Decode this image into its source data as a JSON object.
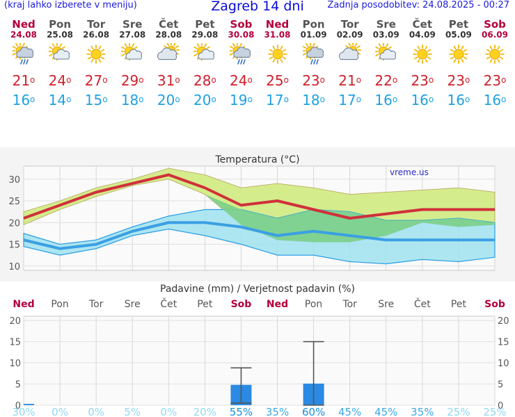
{
  "header": {
    "location_hint": "(kraj lahko izberete v meniju)",
    "title": "Zagreb 14 dni",
    "updated": "Zadnja posodobitev: 24.08.2025 - 00:27"
  },
  "forecast": {
    "days": [
      {
        "day": "Ned",
        "date": "24.08",
        "weekend": true,
        "icon": "sun-cloud-rain-icon",
        "max": "21",
        "min": "16"
      },
      {
        "day": "Pon",
        "date": "25.08",
        "weekend": false,
        "icon": "sun-cloud-icon",
        "max": "24",
        "min": "14"
      },
      {
        "day": "Tor",
        "date": "26.08",
        "weekend": false,
        "icon": "sun-icon",
        "max": "27",
        "min": "15"
      },
      {
        "day": "Sre",
        "date": "27.08",
        "weekend": false,
        "icon": "sun-cloud-icon",
        "max": "29",
        "min": "18"
      },
      {
        "day": "Čet",
        "date": "28.08",
        "weekend": false,
        "icon": "cloud-sun-icon",
        "max": "31",
        "min": "20"
      },
      {
        "day": "Pet",
        "date": "29.08",
        "weekend": false,
        "icon": "sun-cloud-icon",
        "max": "28",
        "min": "20"
      },
      {
        "day": "Sob",
        "date": "30.08",
        "weekend": true,
        "icon": "sun-cloud-rain-icon",
        "max": "24",
        "min": "19"
      },
      {
        "day": "Ned",
        "date": "31.08",
        "weekend": true,
        "icon": "sun-icon",
        "max": "25",
        "min": "17"
      },
      {
        "day": "Pon",
        "date": "01.09",
        "weekend": false,
        "icon": "sun-cloud-rain-icon",
        "max": "23",
        "min": "18"
      },
      {
        "day": "Tor",
        "date": "02.09",
        "weekend": false,
        "icon": "cloud-sun-icon",
        "max": "21",
        "min": "17"
      },
      {
        "day": "Sre",
        "date": "03.09",
        "weekend": false,
        "icon": "sun-cloud-icon",
        "max": "22",
        "min": "16"
      },
      {
        "day": "Čet",
        "date": "04.09",
        "weekend": false,
        "icon": "sun-icon",
        "max": "23",
        "min": "16"
      },
      {
        "day": "Pet",
        "date": "05.09",
        "weekend": false,
        "icon": "sun-icon",
        "max": "23",
        "min": "16"
      },
      {
        "day": "Sob",
        "date": "06.09",
        "weekend": true,
        "icon": "sun-icon",
        "max": "23",
        "min": "16"
      }
    ],
    "degree_symbol": "o"
  },
  "colors": {
    "max_line": "#d0303a",
    "min_line": "#3b9fe3",
    "max_band": "#d4ec8c",
    "min_band": "#9fe2ef",
    "overlap_band": "#7ccf8a",
    "precip_bar": "#2b8ae3",
    "weekend": "#b3003a",
    "prob": "#1fa0e0"
  },
  "chart_data": [
    {
      "type": "line",
      "title": "Temperatura (°C)",
      "watermark": "vreme.us",
      "x": [
        "Ned",
        "Pon",
        "Tor",
        "Sre",
        "Čet",
        "Pet",
        "Sob",
        "Ned",
        "Pon",
        "Tor",
        "Sre",
        "Čet",
        "Pet",
        "Sob"
      ],
      "ylim": [
        9,
        33
      ],
      "yticks": [
        10,
        15,
        20,
        25,
        30
      ],
      "grid": true,
      "series": [
        {
          "values": [
            21,
            24,
            27,
            29,
            31,
            28,
            24,
            25,
            23,
            21,
            22,
            23,
            23,
            23
          ],
          "band_low": [
            19.5,
            23,
            26,
            28.5,
            30,
            26.5,
            19.5,
            16,
            15.5,
            15.5,
            17,
            20,
            19,
            19.5
          ],
          "band_high": [
            22.5,
            25,
            28,
            30,
            32.5,
            31,
            28,
            29,
            28,
            26.5,
            27,
            27.5,
            28,
            27
          ]
        },
        {
          "values": [
            16,
            14,
            15,
            18,
            20,
            20,
            19,
            17,
            18,
            17,
            16,
            16,
            16,
            16
          ],
          "band_low": [
            14.5,
            12.5,
            14,
            17,
            18.5,
            17,
            15,
            12.5,
            12.5,
            11,
            10.5,
            11.5,
            11,
            12
          ],
          "band_high": [
            17.5,
            15,
            16,
            19,
            21.5,
            23,
            23,
            21,
            23,
            22.5,
            20.5,
            20.5,
            21,
            20
          ]
        }
      ]
    },
    {
      "type": "bar",
      "title": "Padavine (mm) / Verjetnost padavin (%)",
      "categories": [
        "Ned",
        "Pon",
        "Tor",
        "Sre",
        "Čet",
        "Pet",
        "Sob",
        "Ned",
        "Pon",
        "Tor",
        "Sre",
        "Čet",
        "Pet",
        "Sob"
      ],
      "weekend": [
        true,
        false,
        false,
        false,
        false,
        false,
        true,
        true,
        false,
        false,
        false,
        false,
        false,
        true
      ],
      "values": [
        0.3,
        0,
        0,
        0,
        0,
        0,
        4.8,
        0,
        5.1,
        0,
        0,
        0,
        0,
        0
      ],
      "error_low": [
        0,
        0,
        0,
        0,
        0,
        0,
        0.5,
        0,
        0,
        0,
        0,
        0,
        0,
        0
      ],
      "error_high": [
        0,
        0,
        0,
        0,
        0,
        0,
        8.8,
        0,
        15,
        0,
        0,
        0,
        0,
        0
      ],
      "probability": [
        "30%",
        "0%",
        "0%",
        "5%",
        "0%",
        "20%",
        "55%",
        "35%",
        "60%",
        "45%",
        "45%",
        "35%",
        "25%",
        "25%"
      ],
      "probability_values": [
        30,
        0,
        0,
        5,
        0,
        20,
        55,
        35,
        60,
        45,
        45,
        35,
        25,
        25
      ],
      "ylim": [
        0,
        21
      ],
      "yticks": [
        0,
        5,
        10,
        15,
        20
      ],
      "grid": true
    }
  ]
}
